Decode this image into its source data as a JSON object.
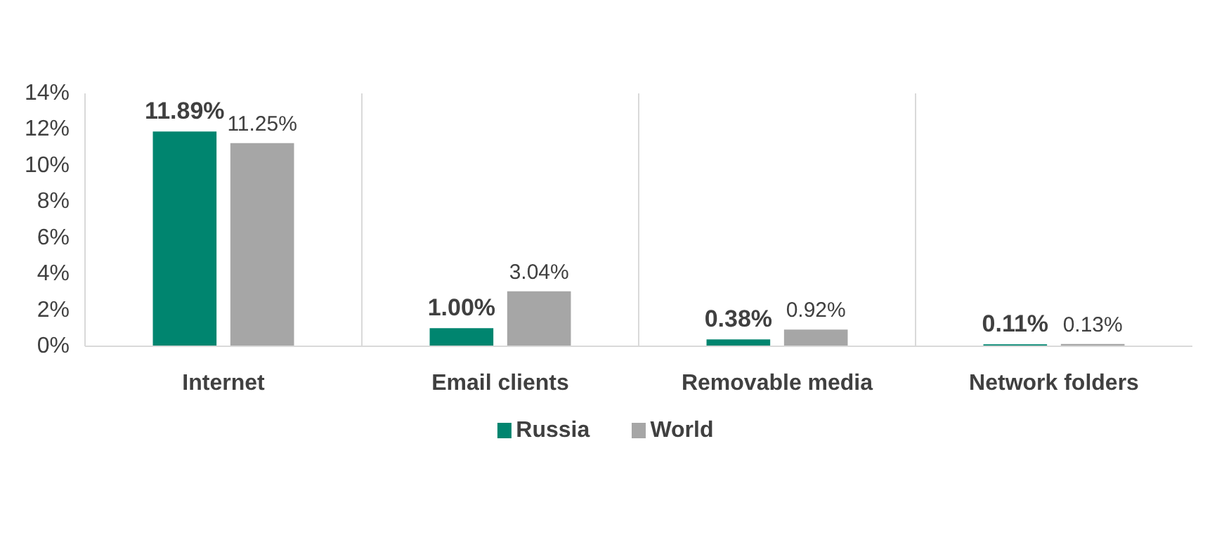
{
  "chart_data": {
    "type": "bar",
    "categories": [
      "Internet",
      "Email clients",
      "Removable media",
      "Network folders"
    ],
    "series": [
      {
        "name": "Russia",
        "color": "#00856f",
        "values": [
          11.89,
          1.0,
          0.38,
          0.11
        ],
        "value_labels": [
          "11.89%",
          "1.00%",
          "0.38%",
          "0.11%"
        ]
      },
      {
        "name": "World",
        "color": "#a6a6a6",
        "values": [
          11.25,
          3.04,
          0.92,
          0.13
        ],
        "value_labels": [
          "11.25%",
          "3.04%",
          "0.92%",
          "0.13%"
        ]
      }
    ],
    "ylim": [
      0,
      14
    ],
    "yticks": [
      {
        "value": 0,
        "label": "0%"
      },
      {
        "value": 2,
        "label": "2%"
      },
      {
        "value": 4,
        "label": "4%"
      },
      {
        "value": 6,
        "label": "6%"
      },
      {
        "value": 8,
        "label": "8%"
      },
      {
        "value": 10,
        "label": "10%"
      },
      {
        "value": 12,
        "label": "12%"
      },
      {
        "value": 14,
        "label": "14%"
      }
    ],
    "grid": "x",
    "legend": "bottom"
  }
}
